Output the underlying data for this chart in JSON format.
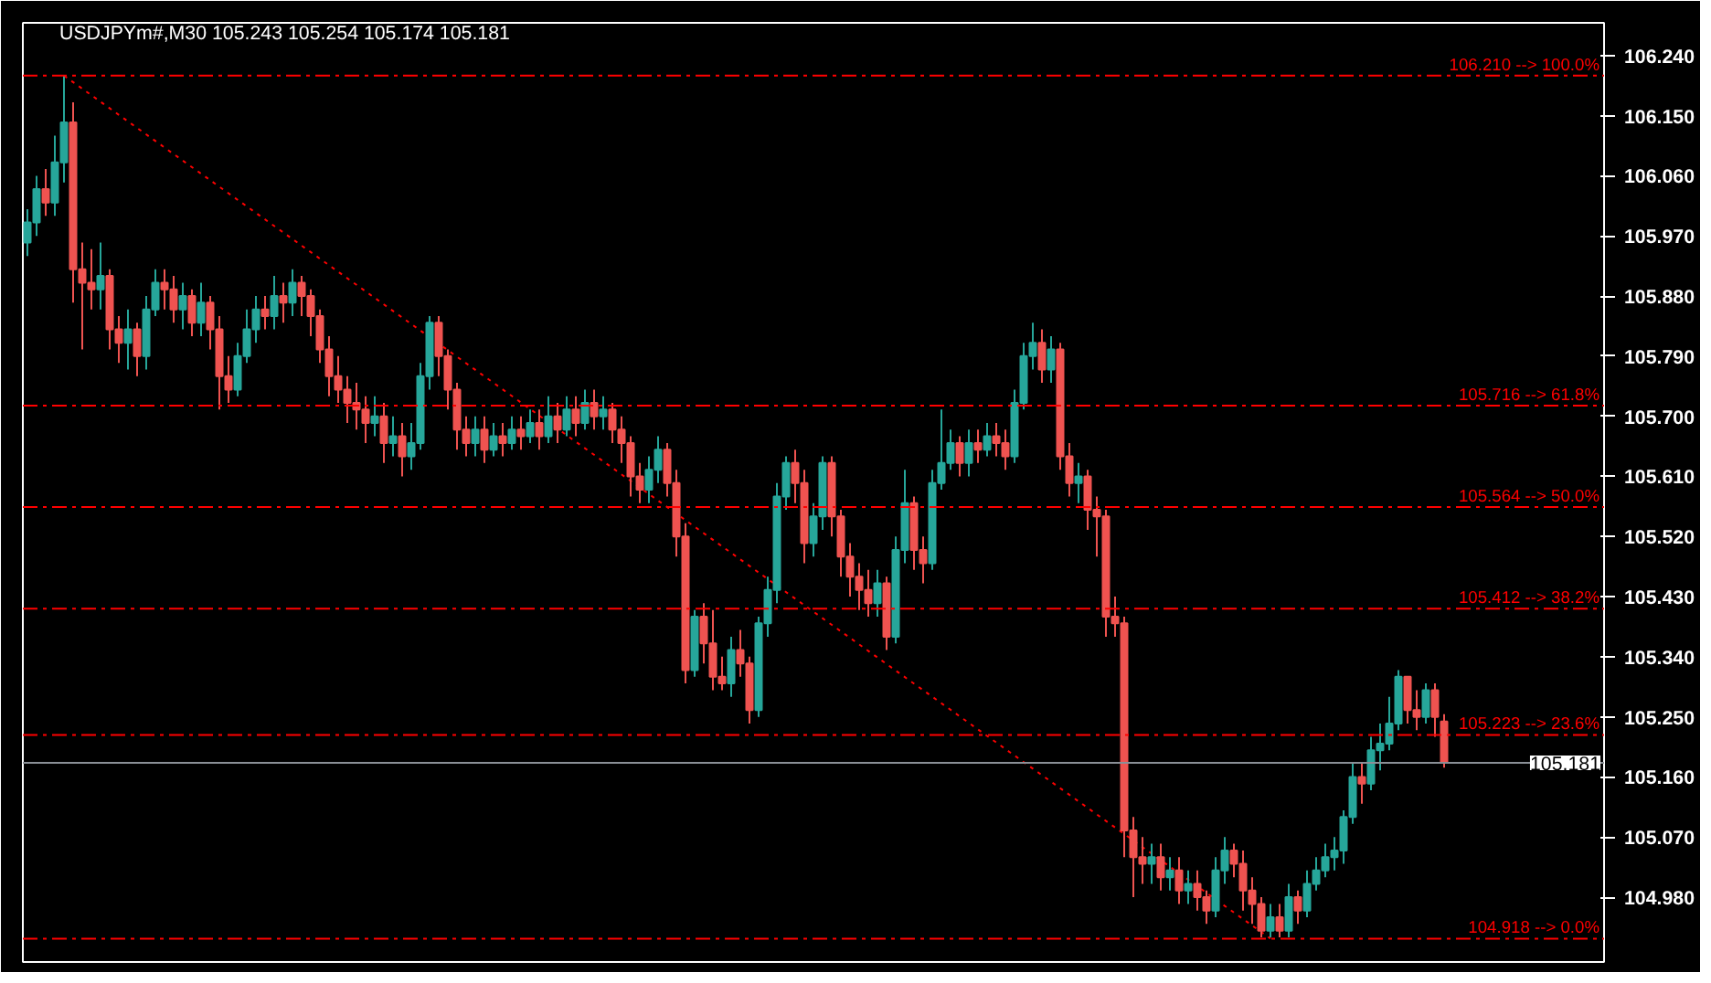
{
  "chart_data": {
    "type": "candlestick",
    "title": "USDJPYm#,M30  105.243 105.254 105.174 105.181",
    "categories": [
      null,
      null,
      null,
      null,
      null,
      null,
      null,
      null,
      null,
      null,
      null,
      null,
      null,
      null,
      null,
      null,
      null,
      null,
      null,
      null,
      null,
      null,
      null,
      null,
      null,
      null,
      null,
      null,
      null,
      null,
      null,
      null,
      null,
      null,
      null,
      null,
      null,
      null,
      null,
      null,
      null,
      null,
      null,
      null,
      null,
      null,
      null,
      null,
      null,
      null,
      null,
      null,
      null,
      null,
      null,
      null,
      null,
      null,
      null,
      null,
      null,
      null,
      null,
      null,
      null,
      null,
      null,
      null,
      null,
      null,
      null,
      null,
      null,
      null,
      null,
      null,
      null,
      null,
      null,
      null,
      null,
      null,
      null,
      null,
      null,
      null,
      null,
      null,
      null,
      null,
      null,
      null,
      null,
      null,
      null,
      null,
      null,
      null,
      null,
      null,
      null,
      null,
      null,
      null,
      null,
      null,
      null,
      null,
      null,
      null,
      null,
      null,
      null,
      null,
      null,
      null,
      null,
      null,
      null,
      null,
      null,
      null,
      null,
      null,
      null,
      null,
      null,
      null,
      null,
      null,
      null,
      null,
      null,
      null,
      null,
      null,
      null,
      null,
      null,
      null,
      null,
      null,
      null,
      null,
      null,
      null,
      null,
      null,
      null,
      null,
      null,
      null,
      null,
      null,
      null,
      null,
      null,
      null,
      null,
      null,
      null,
      null,
      null,
      null,
      null,
      null,
      null,
      null,
      null,
      null,
      null,
      null,
      null
    ],
    "ohlc": [
      [
        105.96,
        106.01,
        105.94,
        105.99
      ],
      [
        105.99,
        106.06,
        105.97,
        106.04
      ],
      [
        106.04,
        106.07,
        106.0,
        106.02
      ],
      [
        106.02,
        106.12,
        106.0,
        106.08
      ],
      [
        106.08,
        106.21,
        106.05,
        106.14
      ],
      [
        106.14,
        106.17,
        105.87,
        105.92
      ],
      [
        105.92,
        105.96,
        105.8,
        105.9
      ],
      [
        105.9,
        105.95,
        105.86,
        105.89
      ],
      [
        105.89,
        105.96,
        105.86,
        105.91
      ],
      [
        105.91,
        105.92,
        105.8,
        105.83
      ],
      [
        105.83,
        105.85,
        105.78,
        105.81
      ],
      [
        105.81,
        105.86,
        105.77,
        105.83
      ],
      [
        105.83,
        105.84,
        105.76,
        105.79
      ],
      [
        105.79,
        105.88,
        105.77,
        105.86
      ],
      [
        105.86,
        105.92,
        105.85,
        105.9
      ],
      [
        105.9,
        105.92,
        105.86,
        105.89
      ],
      [
        105.89,
        105.91,
        105.84,
        105.86
      ],
      [
        105.86,
        105.9,
        105.83,
        105.88
      ],
      [
        105.88,
        105.89,
        105.82,
        105.84
      ],
      [
        105.84,
        105.9,
        105.82,
        105.87
      ],
      [
        105.87,
        105.88,
        105.8,
        105.83
      ],
      [
        105.83,
        105.85,
        105.71,
        105.76
      ],
      [
        105.76,
        105.79,
        105.72,
        105.74
      ],
      [
        105.74,
        105.81,
        105.73,
        105.79
      ],
      [
        105.79,
        105.86,
        105.78,
        105.83
      ],
      [
        105.83,
        105.88,
        105.81,
        105.86
      ],
      [
        105.86,
        105.88,
        105.83,
        105.85
      ],
      [
        105.85,
        105.91,
        105.83,
        105.88
      ],
      [
        105.88,
        105.9,
        105.84,
        105.87
      ],
      [
        105.87,
        105.92,
        105.85,
        105.9
      ],
      [
        105.9,
        105.91,
        105.85,
        105.88
      ],
      [
        105.88,
        105.89,
        105.82,
        105.85
      ],
      [
        105.85,
        105.86,
        105.78,
        105.8
      ],
      [
        105.8,
        105.82,
        105.73,
        105.76
      ],
      [
        105.76,
        105.79,
        105.72,
        105.74
      ],
      [
        105.74,
        105.76,
        105.69,
        105.72
      ],
      [
        105.72,
        105.75,
        105.68,
        105.71
      ],
      [
        105.71,
        105.73,
        105.66,
        105.69
      ],
      [
        105.69,
        105.73,
        105.67,
        105.7
      ],
      [
        105.7,
        105.72,
        105.63,
        105.66
      ],
      [
        105.66,
        105.7,
        105.64,
        105.67
      ],
      [
        105.67,
        105.69,
        105.61,
        105.64
      ],
      [
        105.64,
        105.69,
        105.62,
        105.66
      ],
      [
        105.66,
        105.78,
        105.65,
        105.76
      ],
      [
        105.76,
        105.85,
        105.74,
        105.84
      ],
      [
        105.84,
        105.85,
        105.76,
        105.79
      ],
      [
        105.79,
        105.8,
        105.71,
        105.74
      ],
      [
        105.74,
        105.75,
        105.65,
        105.68
      ],
      [
        105.68,
        105.7,
        105.64,
        105.66
      ],
      [
        105.66,
        105.7,
        105.64,
        105.68
      ],
      [
        105.68,
        105.7,
        105.63,
        105.65
      ],
      [
        105.65,
        105.69,
        105.64,
        105.67
      ],
      [
        105.67,
        105.69,
        105.64,
        105.66
      ],
      [
        105.66,
        105.7,
        105.65,
        105.68
      ],
      [
        105.68,
        105.7,
        105.65,
        105.67
      ],
      [
        105.67,
        105.71,
        105.66,
        105.69
      ],
      [
        105.69,
        105.71,
        105.65,
        105.67
      ],
      [
        105.67,
        105.73,
        105.66,
        105.7
      ],
      [
        105.7,
        105.72,
        105.66,
        105.68
      ],
      [
        105.68,
        105.73,
        105.67,
        105.71
      ],
      [
        105.71,
        105.73,
        105.67,
        105.69
      ],
      [
        105.69,
        105.74,
        105.68,
        105.72
      ],
      [
        105.72,
        105.74,
        105.68,
        105.7
      ],
      [
        105.7,
        105.73,
        105.68,
        105.71
      ],
      [
        105.71,
        105.72,
        105.66,
        105.68
      ],
      [
        105.68,
        105.7,
        105.63,
        105.66
      ],
      [
        105.66,
        105.67,
        105.58,
        105.61
      ],
      [
        105.61,
        105.63,
        105.57,
        105.59
      ],
      [
        105.59,
        105.64,
        105.57,
        105.62
      ],
      [
        105.62,
        105.67,
        105.6,
        105.65
      ],
      [
        105.65,
        105.66,
        105.58,
        105.6
      ],
      [
        105.6,
        105.62,
        105.49,
        105.52
      ],
      [
        105.52,
        105.54,
        105.3,
        105.32
      ],
      [
        105.32,
        105.41,
        105.31,
        105.4
      ],
      [
        105.4,
        105.42,
        105.33,
        105.36
      ],
      [
        105.36,
        105.41,
        105.29,
        105.31
      ],
      [
        105.31,
        105.34,
        105.29,
        105.3
      ],
      [
        105.3,
        105.37,
        105.28,
        105.35
      ],
      [
        105.35,
        105.38,
        105.31,
        105.33
      ],
      [
        105.33,
        105.34,
        105.24,
        105.26
      ],
      [
        105.26,
        105.4,
        105.25,
        105.39
      ],
      [
        105.39,
        105.46,
        105.37,
        105.44
      ],
      [
        105.44,
        105.6,
        105.42,
        105.58
      ],
      [
        105.58,
        105.64,
        105.56,
        105.63
      ],
      [
        105.63,
        105.65,
        105.57,
        105.6
      ],
      [
        105.6,
        105.62,
        105.48,
        105.51
      ],
      [
        105.51,
        105.57,
        105.49,
        105.55
      ],
      [
        105.55,
        105.64,
        105.53,
        105.63
      ],
      [
        105.63,
        105.64,
        105.52,
        105.55
      ],
      [
        105.55,
        105.56,
        105.46,
        105.49
      ],
      [
        105.49,
        105.51,
        105.43,
        105.46
      ],
      [
        105.46,
        105.48,
        105.41,
        105.44
      ],
      [
        105.44,
        105.47,
        105.4,
        105.42
      ],
      [
        105.42,
        105.47,
        105.4,
        105.45
      ],
      [
        105.45,
        105.46,
        105.35,
        105.37
      ],
      [
        105.37,
        105.52,
        105.36,
        105.5
      ],
      [
        105.5,
        105.62,
        105.48,
        105.57
      ],
      [
        105.57,
        105.58,
        105.47,
        105.5
      ],
      [
        105.5,
        105.52,
        105.45,
        105.48
      ],
      [
        105.48,
        105.62,
        105.47,
        105.6
      ],
      [
        105.6,
        105.71,
        105.59,
        105.63
      ],
      [
        105.63,
        105.68,
        105.62,
        105.66
      ],
      [
        105.66,
        105.67,
        105.61,
        105.63
      ],
      [
        105.63,
        105.68,
        105.61,
        105.66
      ],
      [
        105.66,
        105.68,
        105.63,
        105.65
      ],
      [
        105.65,
        105.69,
        105.64,
        105.67
      ],
      [
        105.67,
        105.69,
        105.64,
        105.66
      ],
      [
        105.66,
        105.68,
        105.62,
        105.64
      ],
      [
        105.64,
        105.74,
        105.63,
        105.72
      ],
      [
        105.72,
        105.81,
        105.71,
        105.79
      ],
      [
        105.79,
        105.84,
        105.77,
        105.81
      ],
      [
        105.81,
        105.83,
        105.75,
        105.77
      ],
      [
        105.77,
        105.82,
        105.75,
        105.8
      ],
      [
        105.8,
        105.81,
        105.62,
        105.64
      ],
      [
        105.64,
        105.66,
        105.58,
        105.6
      ],
      [
        105.6,
        105.63,
        105.57,
        105.61
      ],
      [
        105.61,
        105.62,
        105.53,
        105.56
      ],
      [
        105.56,
        105.58,
        105.49,
        105.55
      ],
      [
        105.55,
        105.56,
        105.37,
        105.4
      ],
      [
        105.4,
        105.43,
        105.37,
        105.39
      ],
      [
        105.39,
        105.4,
        105.04,
        105.08
      ],
      [
        105.08,
        105.1,
        104.98,
        105.04
      ],
      [
        105.04,
        105.07,
        105.0,
        105.03
      ],
      [
        105.03,
        105.06,
        105.0,
        105.04
      ],
      [
        105.04,
        105.06,
        104.99,
        105.01
      ],
      [
        105.01,
        105.04,
        104.99,
        105.02
      ],
      [
        105.02,
        105.04,
        104.97,
        104.99
      ],
      [
        104.99,
        105.02,
        104.97,
        105.0
      ],
      [
        105.0,
        105.02,
        104.96,
        104.98
      ],
      [
        104.98,
        104.99,
        104.94,
        104.96
      ],
      [
        104.96,
        105.04,
        104.95,
        105.02
      ],
      [
        105.02,
        105.07,
        105.0,
        105.05
      ],
      [
        105.05,
        105.06,
        105.01,
        105.03
      ],
      [
        105.03,
        105.05,
        104.96,
        104.99
      ],
      [
        104.99,
        105.01,
        104.94,
        104.97
      ],
      [
        104.97,
        104.98,
        104.92,
        104.93
      ],
      [
        104.93,
        104.97,
        104.92,
        104.95
      ],
      [
        104.95,
        104.97,
        104.92,
        104.93
      ],
      [
        104.93,
        105.0,
        104.92,
        104.98
      ],
      [
        104.98,
        104.99,
        104.94,
        104.96
      ],
      [
        104.96,
        105.02,
        104.95,
        105.0
      ],
      [
        105.0,
        105.04,
        104.99,
        105.02
      ],
      [
        105.02,
        105.06,
        105.01,
        105.04
      ],
      [
        105.04,
        105.07,
        105.02,
        105.05
      ],
      [
        105.05,
        105.11,
        105.03,
        105.1
      ],
      [
        105.1,
        105.18,
        105.09,
        105.16
      ],
      [
        105.16,
        105.18,
        105.12,
        105.15
      ],
      [
        105.15,
        105.22,
        105.14,
        105.2
      ],
      [
        105.2,
        105.24,
        105.17,
        105.21
      ],
      [
        105.21,
        105.28,
        105.2,
        105.24
      ],
      [
        105.24,
        105.32,
        105.23,
        105.31
      ],
      [
        105.31,
        105.31,
        105.24,
        105.26
      ],
      [
        105.26,
        105.29,
        105.23,
        105.25
      ],
      [
        105.25,
        105.3,
        105.24,
        105.29
      ],
      [
        105.29,
        105.3,
        105.22,
        105.25
      ],
      [
        105.243,
        105.254,
        105.174,
        105.181
      ],
      null,
      null,
      null,
      null,
      null,
      null,
      null,
      null,
      null,
      null,
      null,
      null,
      null,
      null,
      null,
      null,
      null
    ],
    "colors": [
      "#26a69a",
      "#26a69a",
      "#ef5350",
      "#26a69a",
      "#26a69a",
      "#ef5350",
      "#ef5350",
      "#ef5350",
      "#26a69a",
      "#ef5350",
      "#ef5350",
      "#26a69a",
      "#ef5350",
      "#26a69a",
      "#26a69a",
      "#ef5350",
      "#ef5350",
      "#26a69a",
      "#ef5350",
      "#26a69a",
      "#ef5350",
      "#ef5350",
      "#ef5350",
      "#26a69a",
      "#26a69a",
      "#26a69a",
      "#ef5350",
      "#26a69a",
      "#ef5350",
      "#26a69a",
      "#ef5350",
      "#ef5350",
      "#ef5350",
      "#ef5350",
      "#ef5350",
      "#ef5350",
      "#ef5350",
      "#ef5350",
      "#26a69a",
      "#ef5350",
      "#26a69a",
      "#ef5350",
      "#26a69a",
      "#26a69a",
      "#26a69a",
      "#ef5350",
      "#ef5350",
      "#ef5350",
      "#ef5350",
      "#26a69a",
      "#ef5350",
      "#26a69a",
      "#ef5350",
      "#26a69a",
      "#ef5350",
      "#26a69a",
      "#ef5350",
      "#26a69a",
      "#ef5350",
      "#26a69a",
      "#ef5350",
      "#26a69a",
      "#ef5350",
      "#26a69a",
      "#ef5350",
      "#ef5350",
      "#ef5350",
      "#ef5350",
      "#26a69a",
      "#26a69a",
      "#ef5350",
      "#ef5350",
      "#ef5350",
      "#26a69a",
      "#ef5350",
      "#ef5350",
      "#ef5350",
      "#26a69a",
      "#ef5350",
      "#ef5350",
      "#26a69a",
      "#26a69a",
      "#26a69a",
      "#26a69a",
      "#ef5350",
      "#ef5350",
      "#26a69a",
      "#26a69a",
      "#ef5350",
      "#ef5350",
      "#ef5350",
      "#ef5350",
      "#ef5350",
      "#26a69a",
      "#ef5350",
      "#26a69a",
      "#26a69a",
      "#ef5350",
      "#ef5350",
      "#26a69a",
      "#26a69a",
      "#26a69a",
      "#ef5350",
      "#26a69a",
      "#ef5350",
      "#26a69a",
      "#ef5350",
      "#ef5350",
      "#26a69a",
      "#26a69a",
      "#26a69a",
      "#ef5350",
      "#26a69a",
      "#ef5350",
      "#ef5350",
      "#26a69a",
      "#ef5350",
      "#ef5350",
      "#ef5350",
      "#ef5350",
      "#ef5350",
      "#ef5350",
      "#ef5350",
      "#26a69a",
      "#ef5350",
      "#26a69a",
      "#ef5350",
      "#26a69a",
      "#ef5350",
      "#ef5350",
      "#26a69a",
      "#26a69a",
      "#ef5350",
      "#ef5350",
      "#ef5350",
      "#ef5350",
      "#26a69a",
      "#ef5350",
      "#26a69a",
      "#ef5350",
      "#26a69a",
      "#26a69a",
      "#26a69a",
      "#26a69a",
      "#26a69a",
      "#26a69a",
      "#ef5350",
      "#26a69a",
      "#26a69a",
      "#26a69a",
      "#26a69a",
      "#ef5350",
      "#ef5350",
      "#26a69a",
      "#ef5350",
      "#ef5350",
      null,
      null,
      null,
      null,
      null,
      null,
      null,
      null,
      null,
      null,
      null,
      null,
      null,
      null,
      null,
      null,
      null
    ],
    "series": [
      {
        "type": "line",
        "color": "#ff0000",
        "line_style": "dotted",
        "values": [
          null,
          null,
          null,
          null,
          106.21,
          null,
          null,
          null,
          null,
          null,
          null,
          null,
          null,
          null,
          null,
          null,
          null,
          null,
          null,
          null,
          null,
          null,
          null,
          null,
          null,
          null,
          null,
          null,
          null,
          null,
          null,
          null,
          null,
          null,
          null,
          null,
          null,
          null,
          null,
          null,
          null,
          null,
          null,
          null,
          null,
          null,
          null,
          null,
          null,
          null,
          null,
          null,
          null,
          null,
          null,
          null,
          null,
          null,
          null,
          null,
          null,
          null,
          null,
          null,
          null,
          null,
          null,
          null,
          null,
          null,
          null,
          null,
          null,
          null,
          null,
          null,
          null,
          null,
          null,
          null,
          null,
          null,
          null,
          null,
          null,
          null,
          null,
          null,
          null,
          null,
          null,
          null,
          null,
          null,
          null,
          null,
          null,
          null,
          null,
          null,
          null,
          null,
          null,
          null,
          null,
          null,
          null,
          null,
          null,
          null,
          null,
          null,
          null,
          null,
          null,
          null,
          null,
          null,
          null,
          null,
          null,
          null,
          null,
          null,
          null,
          null,
          null,
          null,
          null,
          null,
          null,
          null,
          null,
          null,
          null,
          null,
          104.918,
          null,
          null,
          null,
          null,
          null,
          null,
          null,
          null,
          null,
          null,
          null,
          null,
          null,
          null,
          null,
          null,
          null,
          null,
          null,
          null,
          null,
          null,
          null,
          null,
          null,
          null,
          null,
          null,
          null,
          null,
          null,
          null,
          null,
          null,
          null,
          null
        ]
      }
    ],
    "ylim": [
      104.883,
      106.289
    ],
    "yticks": [
      {
        "value": 106.24,
        "label": "106.240"
      },
      {
        "value": 106.15,
        "label": "106.150"
      },
      {
        "value": 106.06,
        "label": "106.060"
      },
      {
        "value": 105.97,
        "label": "105.970"
      },
      {
        "value": 105.88,
        "label": "105.880"
      },
      {
        "value": 105.79,
        "label": "105.790"
      },
      {
        "value": 105.7,
        "label": "105.700"
      },
      {
        "value": 105.61,
        "label": "105.610"
      },
      {
        "value": 105.52,
        "label": "105.520"
      },
      {
        "value": 105.43,
        "label": "105.430"
      },
      {
        "value": 105.34,
        "label": "105.340"
      },
      {
        "value": 105.25,
        "label": "105.250"
      },
      {
        "value": 105.16,
        "label": "105.160"
      },
      {
        "value": 105.07,
        "label": "105.070"
      },
      {
        "value": 104.98,
        "label": "104.980"
      }
    ],
    "ref_lines": [
      {
        "axis": "y",
        "value": 106.21,
        "label": "106.210 --> 100.0%",
        "color": "#ff0000",
        "line_style": "dashed"
      },
      {
        "axis": "y",
        "value": 105.716,
        "label": "105.716 --> 61.8%",
        "color": "#ff0000",
        "line_style": "dashed"
      },
      {
        "axis": "y",
        "value": 105.564,
        "label": "105.564 --> 50.0%",
        "color": "#ff0000",
        "line_style": "dashed"
      },
      {
        "axis": "y",
        "value": 105.412,
        "label": "105.412 --> 38.2%",
        "color": "#ff0000",
        "line_style": "dashed"
      },
      {
        "axis": "y",
        "value": 105.223,
        "label": "105.223 --> 23.6%",
        "color": "#ff0000",
        "line_style": "dashed"
      },
      {
        "axis": "y",
        "value": 104.918,
        "label": "104.918 --> 0.0%",
        "color": "#ff0000",
        "line_style": "dashed"
      },
      {
        "axis": "y",
        "value": 105.181,
        "label": "105.181",
        "color": "#8a8f96",
        "line_style": "solid"
      }
    ],
    "grid": false,
    "tick_labels": "y"
  }
}
